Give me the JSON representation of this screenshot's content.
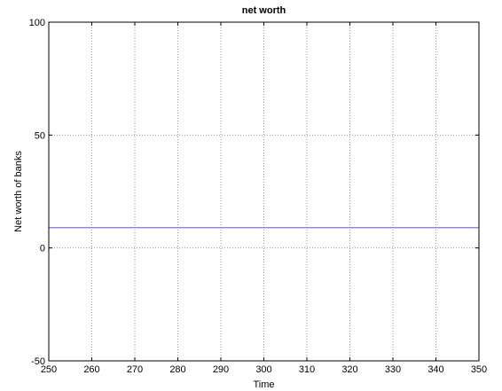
{
  "chart_data": {
    "type": "line",
    "title": "net worth",
    "xlabel": "Time",
    "ylabel": "Net worth of banks",
    "xlim": [
      250,
      350
    ],
    "ylim": [
      -50,
      100
    ],
    "xticks": [
      250,
      260,
      270,
      280,
      290,
      300,
      310,
      320,
      330,
      340,
      350
    ],
    "yticks": [
      -50,
      0,
      50,
      100
    ],
    "grid": true,
    "series": [
      {
        "color": "#7777dd",
        "x": [
          250,
          350
        ],
        "y": [
          9,
          9
        ]
      }
    ]
  }
}
